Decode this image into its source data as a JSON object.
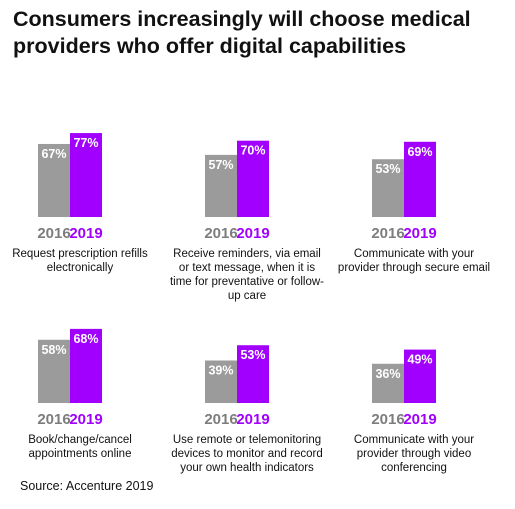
{
  "title": "Consumers increasingly will choose medical providers who offer digital capabilities",
  "source": "Source: Accenture 2019",
  "colors": {
    "y2016": "#9b9b9b",
    "y2019": "#a100ff",
    "y2016_label": "#7d7d7d",
    "y2019_label": "#a100ff"
  },
  "chart_data": [
    {
      "type": "bar",
      "title": "Request prescription refills electronically",
      "categories": [
        "2016",
        "2019"
      ],
      "values": [
        67,
        77
      ],
      "labels": [
        "67%",
        "77%"
      ],
      "ylim": [
        0,
        100
      ]
    },
    {
      "type": "bar",
      "title": "Receive reminders, via email or text message, when it is time for preventative or follow-up care",
      "categories": [
        "2016",
        "2019"
      ],
      "values": [
        57,
        70
      ],
      "labels": [
        "57%",
        "70%"
      ],
      "ylim": [
        0,
        100
      ]
    },
    {
      "type": "bar",
      "title": "Communicate with your provider through secure email",
      "categories": [
        "2016",
        "2019"
      ],
      "values": [
        53,
        69
      ],
      "labels": [
        "53%",
        "69%"
      ],
      "ylim": [
        0,
        100
      ]
    },
    {
      "type": "bar",
      "title": "Book/change/cancel appointments online",
      "categories": [
        "2016",
        "2019"
      ],
      "values": [
        58,
        68
      ],
      "labels": [
        "58%",
        "68%"
      ],
      "ylim": [
        0,
        100
      ]
    },
    {
      "type": "bar",
      "title": "Use remote or telemonitoring devices to monitor and record your own health indicators",
      "categories": [
        "2016",
        "2019"
      ],
      "values": [
        39,
        53
      ],
      "labels": [
        "39%",
        "53%"
      ],
      "ylim": [
        0,
        100
      ]
    },
    {
      "type": "bar",
      "title": "Communicate with your provider through video conferencing",
      "categories": [
        "2016",
        "2019"
      ],
      "values": [
        36,
        49
      ],
      "labels": [
        "36%",
        "49%"
      ],
      "ylim": [
        0,
        100
      ]
    }
  ]
}
